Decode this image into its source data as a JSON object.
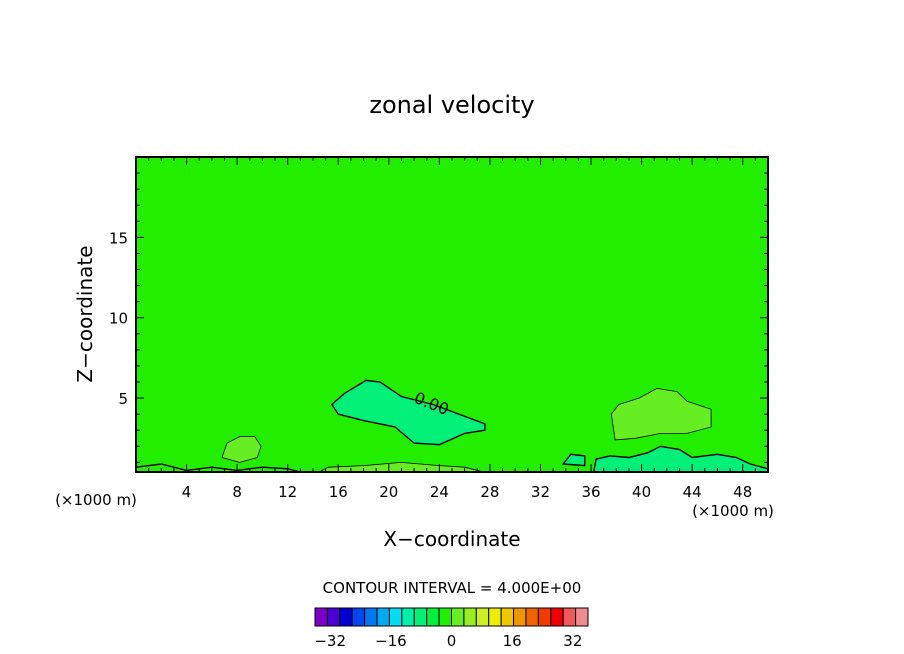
{
  "chart_data": {
    "type": "heatmap",
    "title": "zonal velocity",
    "xlabel": "X−coordinate",
    "ylabel": "Z−coordinate",
    "x_unit_left": "(×1000 m)",
    "x_unit_right": "(×1000 m)",
    "xlim": [
      0,
      50
    ],
    "ylim": [
      0.4,
      20
    ],
    "x_ticks": [
      4,
      8,
      12,
      16,
      20,
      24,
      28,
      32,
      36,
      40,
      44,
      48
    ],
    "x_tick_labels": [
      "4",
      "8",
      "12",
      "16",
      "20",
      "24",
      "28",
      "32",
      "36",
      "40",
      "44",
      "48"
    ],
    "y_ticks": [
      5,
      10,
      15
    ],
    "y_tick_labels": [
      "5",
      "10",
      "15"
    ],
    "background_color": "#22ee00",
    "contour_label": "0.00",
    "contour_interval_text": "CONTOUR INTERVAL = 4.000E+00",
    "regions": [
      {
        "level": -4,
        "color": "#00f078",
        "points": [
          [
            15.5,
            4.6
          ],
          [
            16.5,
            5.3
          ],
          [
            18.2,
            6.1
          ],
          [
            19.3,
            6.0
          ],
          [
            21,
            5.1
          ],
          [
            23.5,
            4.6
          ],
          [
            27.6,
            3.4
          ],
          [
            27.6,
            3.0
          ],
          [
            26,
            2.8
          ],
          [
            24,
            2.1
          ],
          [
            22,
            2.2
          ],
          [
            20.5,
            3.2
          ],
          [
            18,
            3.6
          ],
          [
            16,
            4.0
          ]
        ]
      },
      {
        "level": 4,
        "color": "#66ee22",
        "points": [
          [
            37.6,
            4.0
          ],
          [
            38.2,
            4.6
          ],
          [
            39.8,
            5.0
          ],
          [
            41.2,
            5.6
          ],
          [
            42.8,
            5.4
          ],
          [
            43.6,
            4.8
          ],
          [
            45.5,
            4.3
          ],
          [
            45.5,
            3.2
          ],
          [
            43.6,
            2.8
          ],
          [
            41.5,
            2.8
          ],
          [
            39.5,
            2.5
          ],
          [
            37.9,
            2.4
          ]
        ]
      },
      {
        "level": 4,
        "color": "#66ee22",
        "points": [
          [
            6.8,
            1.3
          ],
          [
            7.2,
            2.2
          ],
          [
            8.2,
            2.6
          ],
          [
            9.4,
            2.6
          ],
          [
            9.9,
            2.0
          ],
          [
            9.6,
            1.3
          ],
          [
            8.2,
            1.0
          ]
        ]
      },
      {
        "level": -4,
        "color": "#00f078",
        "points": [
          [
            36.2,
            0.4
          ],
          [
            36.4,
            1.2
          ],
          [
            37.5,
            1.4
          ],
          [
            39,
            1.3
          ],
          [
            40.5,
            1.6
          ],
          [
            41.5,
            2.0
          ],
          [
            43,
            1.8
          ],
          [
            44,
            1.3
          ],
          [
            46,
            1.5
          ],
          [
            47.5,
            1.3
          ],
          [
            48.6,
            0.9
          ],
          [
            50,
            0.6
          ],
          [
            50,
            0.4
          ]
        ]
      },
      {
        "level": 4,
        "color": "#66ee22",
        "points": [
          [
            14.5,
            0.4
          ],
          [
            15.2,
            0.7
          ],
          [
            18,
            0.8
          ],
          [
            21,
            1.0
          ],
          [
            24,
            0.8
          ],
          [
            26,
            0.7
          ],
          [
            27.5,
            0.4
          ]
        ]
      },
      {
        "level": -4,
        "color": "#00f078",
        "points": [
          [
            33.8,
            0.9
          ],
          [
            34.4,
            1.5
          ],
          [
            35.5,
            1.4
          ],
          [
            35.5,
            0.8
          ]
        ]
      }
    ],
    "colorbar": {
      "min": -36,
      "max": 36,
      "step": 4,
      "tick_values": [
        -32,
        -16,
        0,
        16,
        32
      ],
      "tick_labels": [
        "−32",
        "−16",
        "0",
        "16",
        "32"
      ],
      "colors": [
        "#7d00c8",
        "#4b00d2",
        "#0000d2",
        "#0046f0",
        "#0078f0",
        "#00aaf0",
        "#00dcf0",
        "#00f0aa",
        "#00f078",
        "#00f03c",
        "#22ee00",
        "#66ee22",
        "#99ee22",
        "#ccee22",
        "#eeee00",
        "#f0c800",
        "#f09600",
        "#f06400",
        "#f03c00",
        "#f00000",
        "#f05a5a",
        "#f08c8c"
      ]
    }
  }
}
